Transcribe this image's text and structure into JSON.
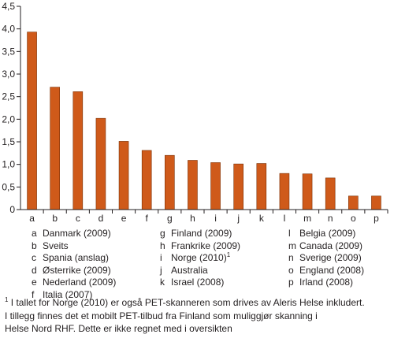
{
  "chart_data": {
    "type": "bar",
    "categories": [
      "a",
      "b",
      "c",
      "d",
      "e",
      "f",
      "g",
      "h",
      "i",
      "j",
      "k",
      "l",
      "m",
      "n",
      "o",
      "p"
    ],
    "values": [
      3.93,
      2.71,
      2.61,
      2.02,
      1.51,
      1.31,
      1.2,
      1.09,
      1.04,
      1.01,
      1.02,
      0.8,
      0.79,
      0.7,
      0.3,
      0.3
    ],
    "yticks": [
      "0",
      "0,5",
      "1,0",
      "1,5",
      "2,0",
      "2,5",
      "3,0",
      "3,5",
      "4,0",
      "4,5"
    ],
    "ylim": [
      0,
      4.5
    ],
    "title": "",
    "xlabel": "",
    "ylabel": "",
    "grid": false,
    "bar_color": "#cf5a1a",
    "bar_edge_color": "#7a3005"
  },
  "legend": [
    [
      {
        "key": "a",
        "label": "Danmark (2009)"
      },
      {
        "key": "b",
        "label": "Sveits"
      },
      {
        "key": "c",
        "label": "Spania (anslag)"
      },
      {
        "key": "d",
        "label": "Østerrike (2009)"
      },
      {
        "key": "e",
        "label": "Nederland (2009)"
      },
      {
        "key": "f",
        "label": "Italia (2007)"
      }
    ],
    [
      {
        "key": "g",
        "label": "Finland (2009)"
      },
      {
        "key": "h",
        "label": "Frankrike (2009)"
      },
      {
        "key": "i",
        "label": "Norge (2010)",
        "sup": "1"
      },
      {
        "key": "j",
        "label": "Australia"
      },
      {
        "key": "k",
        "label": "Israel (2008)"
      }
    ],
    [
      {
        "key": "l",
        "label": "Belgia (2009)"
      },
      {
        "key": "m",
        "label": "Canada (2009)"
      },
      {
        "key": "n",
        "label": "Sverige (2009)"
      },
      {
        "key": "o",
        "label": "England (2008)"
      },
      {
        "key": "p",
        "label": "Irland (2008)"
      }
    ]
  ],
  "footnote": {
    "marker": "1",
    "lines": [
      " I tallet for Norge (2010) er også PET-skanneren som drives av Aleris Helse inkludert.",
      "I tillegg finnes det et mobilt PET-tilbud fra Finland som muliggjør skanning i",
      "Helse Nord RHF. Dette er ikke regnet med i oversikten"
    ]
  }
}
